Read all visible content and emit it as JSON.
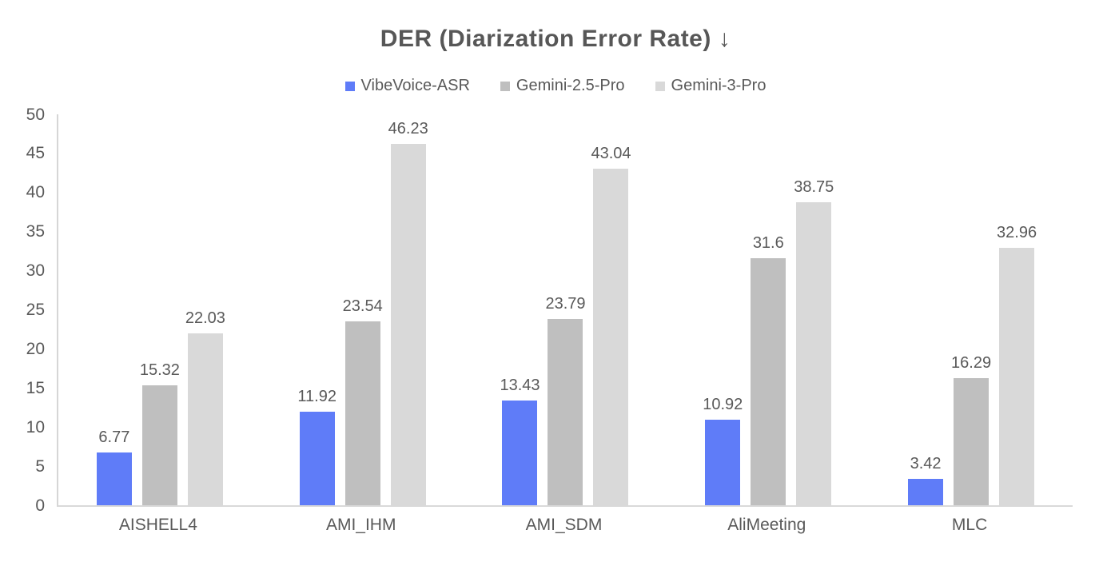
{
  "title": "DER (Diarization Error Rate) ↓",
  "colors": {
    "accent_blue": "#5f7cf8",
    "series_gray": "#bfbfbf",
    "series_light_gray": "#d9d9d9",
    "text_gray": "#595959",
    "axis_line": "#d9d9d9"
  },
  "chart_data": {
    "type": "bar",
    "title": "DER (Diarization Error Rate) ↓",
    "categories": [
      "AISHELL4",
      "AMI_IHM",
      "AMI_SDM",
      "AliMeeting",
      "MLC"
    ],
    "series": [
      {
        "name": "VibeVoice-ASR",
        "color": "#5f7cf8",
        "values": [
          6.77,
          11.92,
          13.43,
          10.92,
          3.42
        ]
      },
      {
        "name": "Gemini-2.5-Pro",
        "color": "#bfbfbf",
        "values": [
          15.32,
          23.54,
          23.79,
          31.6,
          16.29
        ]
      },
      {
        "name": "Gemini-3-Pro",
        "color": "#d9d9d9",
        "values": [
          22.03,
          46.23,
          43.04,
          38.75,
          32.96
        ]
      }
    ],
    "xlabel": "",
    "ylabel": "",
    "ylim": [
      0,
      50
    ],
    "ytick_step": 5,
    "ytick_labels": [
      "0",
      "5",
      "10",
      "15",
      "20",
      "25",
      "30",
      "35",
      "40",
      "45",
      "50"
    ],
    "grid": false,
    "legend_position": "top",
    "data_labels": true
  }
}
